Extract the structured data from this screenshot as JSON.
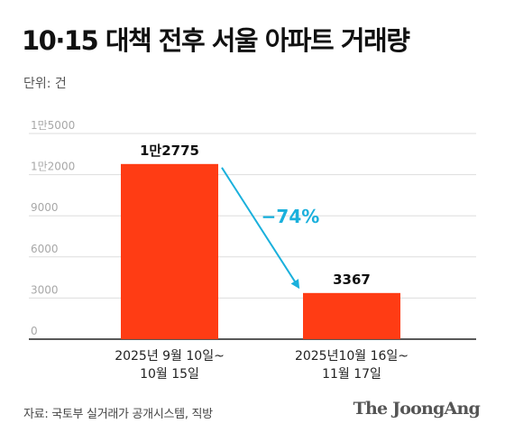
{
  "chart_data": {
    "type": "bar",
    "title": "10·15 대책 전후 서울 아파트 거래량",
    "unit_label": "단위: 건",
    "categories": [
      [
        "2025년 9월 10일~",
        "10월 15일"
      ],
      [
        "2025년10월 16일~",
        "11월 17일"
      ]
    ],
    "values": [
      12775,
      3367
    ],
    "value_labels": [
      "1만2775",
      "3367"
    ],
    "y_ticks": [
      {
        "value": 0,
        "label": "0"
      },
      {
        "value": 3000,
        "label": "3000"
      },
      {
        "value": 6000,
        "label": "6000"
      },
      {
        "value": 9000,
        "label": "9000"
      },
      {
        "value": 12000,
        "label": "1만2000"
      },
      {
        "value": 15000,
        "label": "1만5000"
      }
    ],
    "ylim": [
      0,
      15000
    ],
    "grid": true,
    "annotation": "−74%",
    "colors": {
      "bar": "#ff3c14",
      "arrow": "#1ab0dc",
      "grid": "#dddddd",
      "axis": "#222222"
    }
  },
  "source": "자료: 국토부 실거래가 공개시스템, 직방",
  "brand": "The JoongAng"
}
